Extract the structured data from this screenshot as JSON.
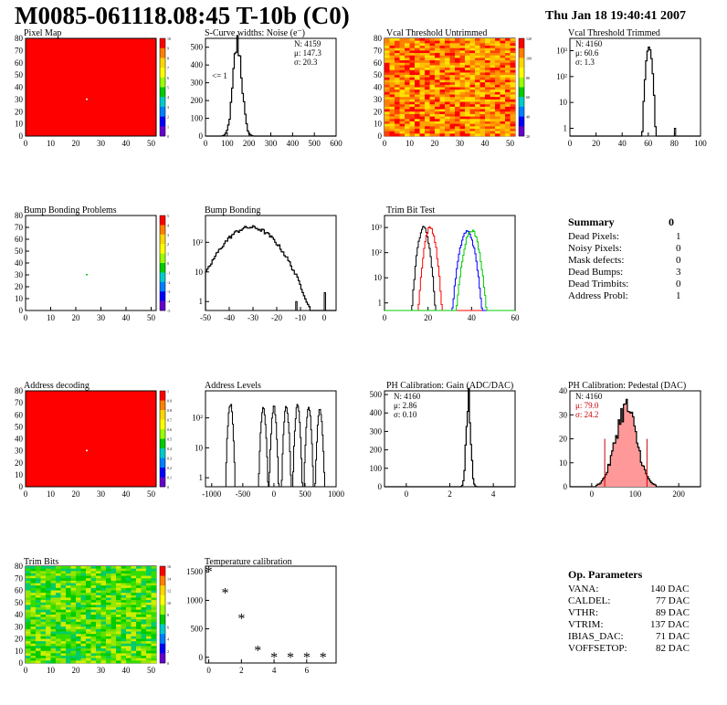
{
  "header": {
    "title": "M0085-061118.08:45 T-10b (C0)",
    "date": "Thu Jan 18 19:40:41 2007"
  },
  "summary": {
    "title": "Summary",
    "value": "0",
    "rows": [
      {
        "label": "Dead Pixels:",
        "value": "1"
      },
      {
        "label": "Noisy Pixels:",
        "value": "0"
      },
      {
        "label": "Mask defects:",
        "value": "0"
      },
      {
        "label": "Dead Bumps:",
        "value": "3"
      },
      {
        "label": "Dead Trimbits:",
        "value": "0"
      },
      {
        "label": "Address Probl:",
        "value": "1"
      }
    ]
  },
  "op_parameters": {
    "title": "Op. Parameters",
    "rows": [
      {
        "label": "VANA:",
        "value": "140 DAC"
      },
      {
        "label": "CALDEL:",
        "value": "77 DAC"
      },
      {
        "label": "VTHR:",
        "value": "89 DAC"
      },
      {
        "label": "VTRIM:",
        "value": "137 DAC"
      },
      {
        "label": "IBIAS_DAC:",
        "value": "71 DAC"
      },
      {
        "label": "VOFFSETOP:",
        "value": "82 DAC"
      }
    ]
  },
  "chart_data": [
    {
      "id": "pixel-map",
      "type": "heatmap",
      "title": "Pixel Map",
      "xlim": [
        0,
        52
      ],
      "ylim": [
        0,
        80
      ],
      "xticks": [
        0,
        10,
        20,
        30,
        40,
        50
      ],
      "yticks": [
        0,
        10,
        20,
        30,
        40,
        50,
        60,
        70,
        80
      ],
      "fill": "uniform",
      "fill_color": "#ff0000",
      "highlight": [
        {
          "x": 24,
          "y": 30,
          "color": "#ffffff"
        }
      ],
      "palette_ticks": [
        "10",
        "9",
        "8",
        "7",
        "6",
        "5",
        "4",
        "3",
        "2",
        "1",
        "0"
      ]
    },
    {
      "id": "scurve",
      "type": "histogram",
      "title": "S-Curve widths: Noise (e⁻)",
      "xlim": [
        0,
        600
      ],
      "ylim": [
        0,
        550
      ],
      "xticks": [
        0,
        100,
        200,
        300,
        400,
        500,
        600
      ],
      "yticks": [
        0,
        100,
        200,
        300,
        400,
        500
      ],
      "log": false,
      "peak": {
        "mean": 147.3,
        "sigma": 20.3,
        "height": 520
      },
      "stats": [
        "N: 4159",
        "μ: 147.3",
        "σ: 20.3"
      ],
      "annotation": "<= 1"
    },
    {
      "id": "vcal-untrimmed",
      "type": "heatmap",
      "title": "Vcal Threshold Untrimmed",
      "xlim": [
        0,
        52
      ],
      "ylim": [
        0,
        80
      ],
      "xticks": [
        0,
        10,
        20,
        30,
        40,
        50
      ],
      "yticks": [
        0,
        10,
        20,
        30,
        40,
        50,
        60,
        70,
        80
      ],
      "fill": "noisy",
      "colors": [
        "#ff0000",
        "#ff4000",
        "#ff8000",
        "#ffa000",
        "#ffc000",
        "#ffe000"
      ],
      "palette_ticks": [
        "120",
        "100",
        "80",
        "60",
        "40",
        "20"
      ]
    },
    {
      "id": "vcal-trimmed",
      "type": "histogram",
      "title": "Vcal Threshold Trimmed",
      "xlim": [
        0,
        100
      ],
      "ylim_log": [
        0.5,
        3000
      ],
      "xticks": [
        0,
        20,
        40,
        60,
        80,
        100
      ],
      "yticks_log": [
        1,
        10,
        100,
        1000
      ],
      "log": true,
      "peak": {
        "mean": 60.6,
        "sigma": 1.3,
        "height": 1500
      },
      "outliers": [
        {
          "x": 80,
          "height": 1
        }
      ],
      "stats": [
        "N: 4160",
        "μ: 60.6",
        "σ: 1.3"
      ]
    },
    {
      "id": "bump-map",
      "type": "heatmap",
      "title": "Bump Bonding Problems",
      "xlim": [
        0,
        52
      ],
      "ylim": [
        0,
        80
      ],
      "xticks": [
        0,
        10,
        20,
        30,
        40,
        50
      ],
      "yticks": [
        0,
        10,
        20,
        30,
        40,
        50,
        60,
        70,
        80
      ],
      "fill": "empty",
      "highlight": [
        {
          "x": 24,
          "y": 30,
          "color": "#00cc00"
        }
      ],
      "palette_ticks": [
        "5",
        "4",
        "3",
        "2",
        "1",
        "0",
        "-1",
        "-2",
        "-3",
        "-4",
        "-5"
      ]
    },
    {
      "id": "bump-bonding",
      "type": "histogram",
      "title": "Bump Bonding",
      "xlim": [
        -50,
        5
      ],
      "ylim_log": [
        0.5,
        800
      ],
      "xticks": [
        -50,
        -40,
        -30,
        -20,
        -10,
        0
      ],
      "yticks_log": [
        1,
        10,
        100
      ],
      "log": true,
      "peak": {
        "mean": -31,
        "sigma": 7,
        "height": 320
      },
      "outliers": [
        {
          "x": -12,
          "height": 1
        },
        {
          "x": 0,
          "height": 2
        }
      ]
    },
    {
      "id": "trim-bit-test",
      "type": "histogram",
      "title": "Trim Bit Test",
      "xlim": [
        0,
        60
      ],
      "ylim_log": [
        0.5,
        3000
      ],
      "xticks": [
        0,
        20,
        40,
        60
      ],
      "yticks_log": [
        1,
        10,
        100,
        1000
      ],
      "log": true,
      "series": [
        {
          "color": "#000000",
          "mean": 18,
          "sigma": 1.4,
          "height": 1000
        },
        {
          "color": "#ff0000",
          "mean": 21,
          "sigma": 1.4,
          "height": 1000
        },
        {
          "color": "#0000ff",
          "mean": 38,
          "sigma": 1.8,
          "height": 700
        },
        {
          "color": "#00cc00",
          "mean": 40,
          "sigma": 1.8,
          "height": 800
        }
      ]
    },
    {
      "id": "address-decoding",
      "type": "heatmap",
      "title": "Address decoding",
      "xlim": [
        0,
        52
      ],
      "ylim": [
        0,
        80
      ],
      "xticks": [
        0,
        10,
        20,
        30,
        40,
        50
      ],
      "yticks": [
        0,
        10,
        20,
        30,
        40,
        50,
        60,
        70,
        80
      ],
      "fill": "uniform",
      "fill_color": "#ff0000",
      "highlight": [
        {
          "x": 24,
          "y": 30,
          "color": "#ffffff"
        }
      ],
      "palette_ticks": [
        "1",
        "0.9",
        "0.8",
        "0.7",
        "0.6",
        "0.5",
        "0.4",
        "0.3",
        "0.2",
        "0.1",
        "0"
      ]
    },
    {
      "id": "address-levels",
      "type": "histogram",
      "title": "Address Levels",
      "xlim": [
        -1100,
        1000
      ],
      "ylim_log": [
        0.5,
        800
      ],
      "xticks": [
        -1000,
        -500,
        0,
        500,
        1000
      ],
      "yticks_log": [
        1,
        10,
        100
      ],
      "log": true,
      "peaks": [
        {
          "mean": -700,
          "height": 300
        },
        {
          "mean": -170,
          "height": 230
        },
        {
          "mean": 0,
          "height": 230
        },
        {
          "mean": 200,
          "height": 230
        },
        {
          "mean": 380,
          "height": 250
        },
        {
          "mean": 560,
          "height": 230
        },
        {
          "mean": 740,
          "height": 200
        }
      ]
    },
    {
      "id": "gain",
      "type": "histogram",
      "title": "PH Calibration: Gain (ADC/DAC)",
      "xlim": [
        -1,
        5
      ],
      "ylim": [
        0,
        520
      ],
      "xticks": [
        0,
        2,
        4
      ],
      "yticks": [
        0,
        100,
        200,
        300,
        400,
        500
      ],
      "log": false,
      "peak": {
        "mean": 2.86,
        "sigma": 0.1,
        "height": 490
      },
      "stats": [
        "N: 4160",
        "μ: 2.86",
        "σ: 0.10"
      ]
    },
    {
      "id": "pedestal",
      "type": "histogram",
      "title": "PH Calibration: Pedestal (DAC)",
      "xlim": [
        -50,
        250
      ],
      "ylim": [
        0,
        40
      ],
      "xticks": [
        0,
        100,
        200
      ],
      "yticks": [
        0,
        10,
        20,
        30,
        40
      ],
      "log": false,
      "peak": {
        "mean": 79,
        "sigma": 24.2,
        "height": 33
      },
      "cut_lines": [
        30,
        127
      ],
      "fill_color": "#ff9999",
      "stats": [
        "N: 4160",
        "μ: 79.0",
        "σ: 24.2"
      ]
    },
    {
      "id": "trim-bits",
      "type": "heatmap",
      "title": "Trim Bits",
      "xlim": [
        0,
        52
      ],
      "ylim": [
        0,
        80
      ],
      "xticks": [
        0,
        10,
        20,
        30,
        40,
        50
      ],
      "yticks": [
        0,
        10,
        20,
        30,
        40,
        50,
        60,
        70,
        80
      ],
      "fill": "noisy",
      "colors": [
        "#00cc00",
        "#33dd00",
        "#66e000",
        "#99e600",
        "#00cc66",
        "#ccee00"
      ],
      "palette_ticks": [
        "16",
        "14",
        "12",
        "10",
        "8",
        "6",
        "4",
        "2",
        "0"
      ]
    },
    {
      "id": "temperature",
      "type": "scatter",
      "title": "Temperature calibration",
      "xlim": [
        -0.2,
        7.8
      ],
      "ylim": [
        -100,
        1600
      ],
      "xticks": [
        0,
        2,
        4,
        6
      ],
      "yticks": [
        0,
        500,
        1000,
        1500
      ],
      "x": [
        0,
        1,
        2,
        3,
        4,
        5,
        6,
        7
      ],
      "y": [
        1500,
        1130,
        680,
        120,
        0,
        0,
        0,
        0
      ]
    }
  ]
}
